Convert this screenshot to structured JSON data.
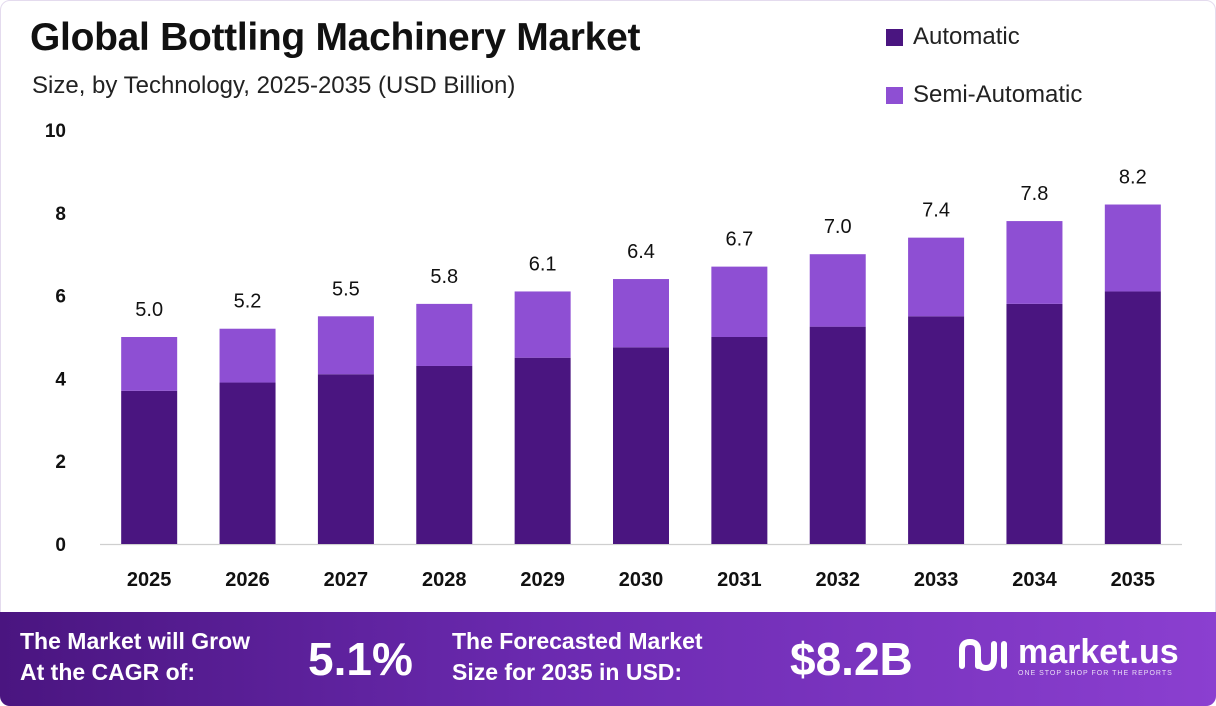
{
  "title": "Global Bottling Machinery Market",
  "subtitle": "Size, by Technology, 2025-2035 (USD Billion)",
  "legend": [
    {
      "label": "Automatic",
      "color": "#4a1580"
    },
    {
      "label": "Semi-Automatic",
      "color": "#8e4fd3"
    }
  ],
  "chart_data": {
    "type": "bar",
    "stacked": true,
    "categories": [
      "2025",
      "2026",
      "2027",
      "2028",
      "2029",
      "2030",
      "2031",
      "2032",
      "2033",
      "2034",
      "2035"
    ],
    "series": [
      {
        "name": "Automatic",
        "color": "#4a1580",
        "values": [
          3.7,
          3.9,
          4.1,
          4.3,
          4.5,
          4.75,
          5.0,
          5.25,
          5.5,
          5.8,
          6.1
        ]
      },
      {
        "name": "Semi-Automatic",
        "color": "#8e4fd3",
        "values": [
          1.3,
          1.3,
          1.4,
          1.5,
          1.6,
          1.65,
          1.7,
          1.75,
          1.9,
          2.0,
          2.1
        ]
      }
    ],
    "totals": [
      "5.0",
      "5.2",
      "5.5",
      "5.8",
      "6.1",
      "6.4",
      "6.7",
      "7.0",
      "7.4",
      "7.8",
      "8.2"
    ],
    "yticks": [
      "0",
      "2",
      "4",
      "6",
      "8",
      "10"
    ],
    "ylim": [
      0,
      10
    ],
    "grid": false,
    "legend_position": "top-right"
  },
  "footer": {
    "cagr_label": "The Market will Grow\nAt the CAGR of:",
    "cagr_value": "5.1%",
    "forecast_label": "The Forecasted Market\nSize for 2035 in USD:",
    "forecast_value": "$8.2B",
    "brand_name": "market.us",
    "brand_tagline": "ONE STOP SHOP FOR THE REPORTS"
  }
}
